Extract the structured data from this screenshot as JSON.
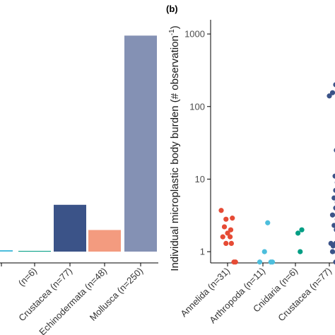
{
  "chart_data": [
    {
      "type": "bar",
      "categories": [
        "Arthropoda (n=11)",
        "Cnidaria (n=6)",
        "Crustacea (n=77)",
        "Echinodermata (n=48)",
        "Mollusca (n=250)"
      ],
      "values": [
        2,
        1,
        65,
        30,
        300
      ],
      "colors": [
        "#4dbedc",
        "#009e84",
        "#3b5388",
        "#f39b7f",
        "#8491b4"
      ],
      "visible_labels": [
        "(n=6)",
        "Crustacea (n=77)",
        "Echinodermata (n=48)",
        "Mollusca (n=250)"
      ],
      "ylim": [
        0,
        320
      ],
      "grid": false
    },
    {
      "type": "scatter",
      "panel_label": "(b)",
      "ylabel": "Individual microplastic body burden (# observation⁻¹)",
      "ylabel_main": "Individual microplastic body burden (# observation",
      "ylabel_sup": "-1",
      "ylabel_end": ")",
      "y_scale": "log",
      "ylim": [
        0.7,
        1500
      ],
      "yticks": [
        1,
        10,
        100,
        1000
      ],
      "ytick_labels": [
        "1",
        "10",
        "100",
        "1000"
      ],
      "categories": [
        "Annelida (n=31)",
        "Arthropoda (n=11)",
        "Cnidaria (n=6)",
        "Crustacea (n=77)",
        "Echinodermata (n=48)"
      ],
      "visible_labels": [
        "Annelida (n=31)",
        "Arthropoda (n=11)",
        "Cnidaria (n=6)",
        "Crustacea (n=77)",
        "Echino"
      ],
      "grid": false,
      "series": [
        {
          "category": "Annelida (n=31)",
          "color": "#e64b35",
          "points": [
            [
              -0.2,
              3.7
            ],
            [
              -0.05,
              2.8
            ],
            [
              0.15,
              2.9
            ],
            [
              -0.1,
              2.2
            ],
            [
              0.1,
              2.0
            ],
            [
              0.0,
              1.8
            ],
            [
              -0.15,
              1.6
            ],
            [
              0.08,
              1.6
            ],
            [
              -0.05,
              1.3
            ],
            [
              0.12,
              1.3
            ],
            [
              0.2,
              0.72
            ],
            [
              0.25,
              0.72
            ]
          ]
        },
        {
          "category": "Arthropoda (n=11)",
          "color": "#4dbedc",
          "points": [
            [
              0.15,
              2.5
            ],
            [
              0.05,
              1.0
            ],
            [
              -0.1,
              0.72
            ],
            [
              0.25,
              0.72
            ],
            [
              0.3,
              0.72
            ]
          ]
        },
        {
          "category": "Cnidaria (n=6)",
          "color": "#009e84",
          "points": [
            [
              0.2,
              2.0
            ],
            [
              0.08,
              1.8
            ],
            [
              0.15,
              1.0
            ]
          ]
        },
        {
          "category": "Crustacea (n=77)",
          "color": "#3b5388",
          "points": [
            [
              0.0,
              140
            ],
            [
              0.1,
              155
            ],
            [
              0.2,
              200
            ],
            [
              0.3,
              210
            ],
            [
              0.22,
              25
            ],
            [
              0.28,
              16
            ],
            [
              0.18,
              11
            ],
            [
              0.25,
              9
            ],
            [
              0.3,
              8
            ],
            [
              0.2,
              7
            ],
            [
              0.28,
              6
            ],
            [
              0.15,
              5.5
            ],
            [
              0.3,
              5
            ],
            [
              0.25,
              4.8
            ],
            [
              0.2,
              4
            ],
            [
              0.3,
              3.5
            ],
            [
              0.1,
              3.2
            ],
            [
              0.25,
              2.8
            ],
            [
              0.3,
              2.6
            ],
            [
              0.15,
              2.3
            ],
            [
              0.22,
              2.0
            ],
            [
              0.3,
              1.8
            ],
            [
              0.05,
              1.3
            ],
            [
              0.12,
              1.2
            ],
            [
              0.2,
              1.3
            ],
            [
              0.28,
              1.25
            ],
            [
              0.3,
              1.1
            ],
            [
              0.1,
              1.0
            ],
            [
              0.25,
              0.95
            ],
            [
              0.3,
              0.72
            ],
            [
              0.2,
              0.72
            ]
          ]
        }
      ]
    }
  ]
}
